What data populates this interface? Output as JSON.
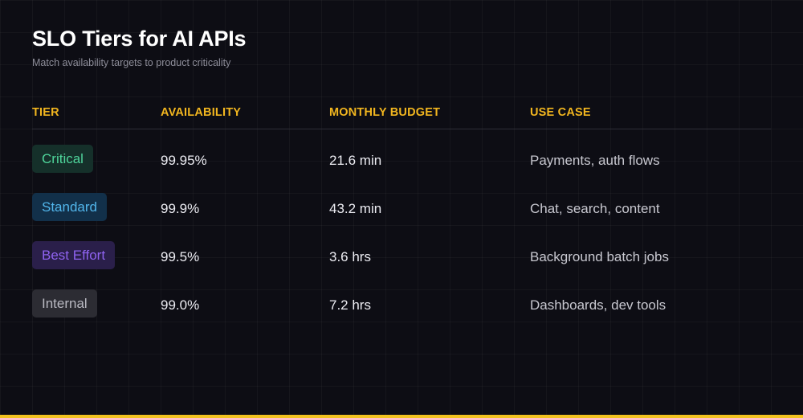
{
  "header": {
    "title": "SLO Tiers for AI APIs",
    "subtitle": "Match availability targets to product criticality"
  },
  "table": {
    "columns": [
      "TIER",
      "AVAILABILITY",
      "MONTHLY BUDGET",
      "USE CASE"
    ],
    "rows": [
      {
        "tier": "Critical",
        "availability": "99.95%",
        "budget": "21.6 min",
        "use_case": "Payments, auth flows"
      },
      {
        "tier": "Standard",
        "availability": "99.9%",
        "budget": "43.2 min",
        "use_case": "Chat, search, content"
      },
      {
        "tier": "Best Effort",
        "availability": "99.5%",
        "budget": "3.6 hrs",
        "use_case": "Background batch jobs"
      },
      {
        "tier": "Internal",
        "availability": "99.0%",
        "budget": "7.2 hrs",
        "use_case": "Dashboards, dev tools"
      }
    ]
  },
  "colors": {
    "accent": "#f2b61f",
    "critical": "#4fd59b",
    "standard": "#52b6ec",
    "best_effort": "#8f63f0",
    "internal": "#b9b9c2"
  }
}
